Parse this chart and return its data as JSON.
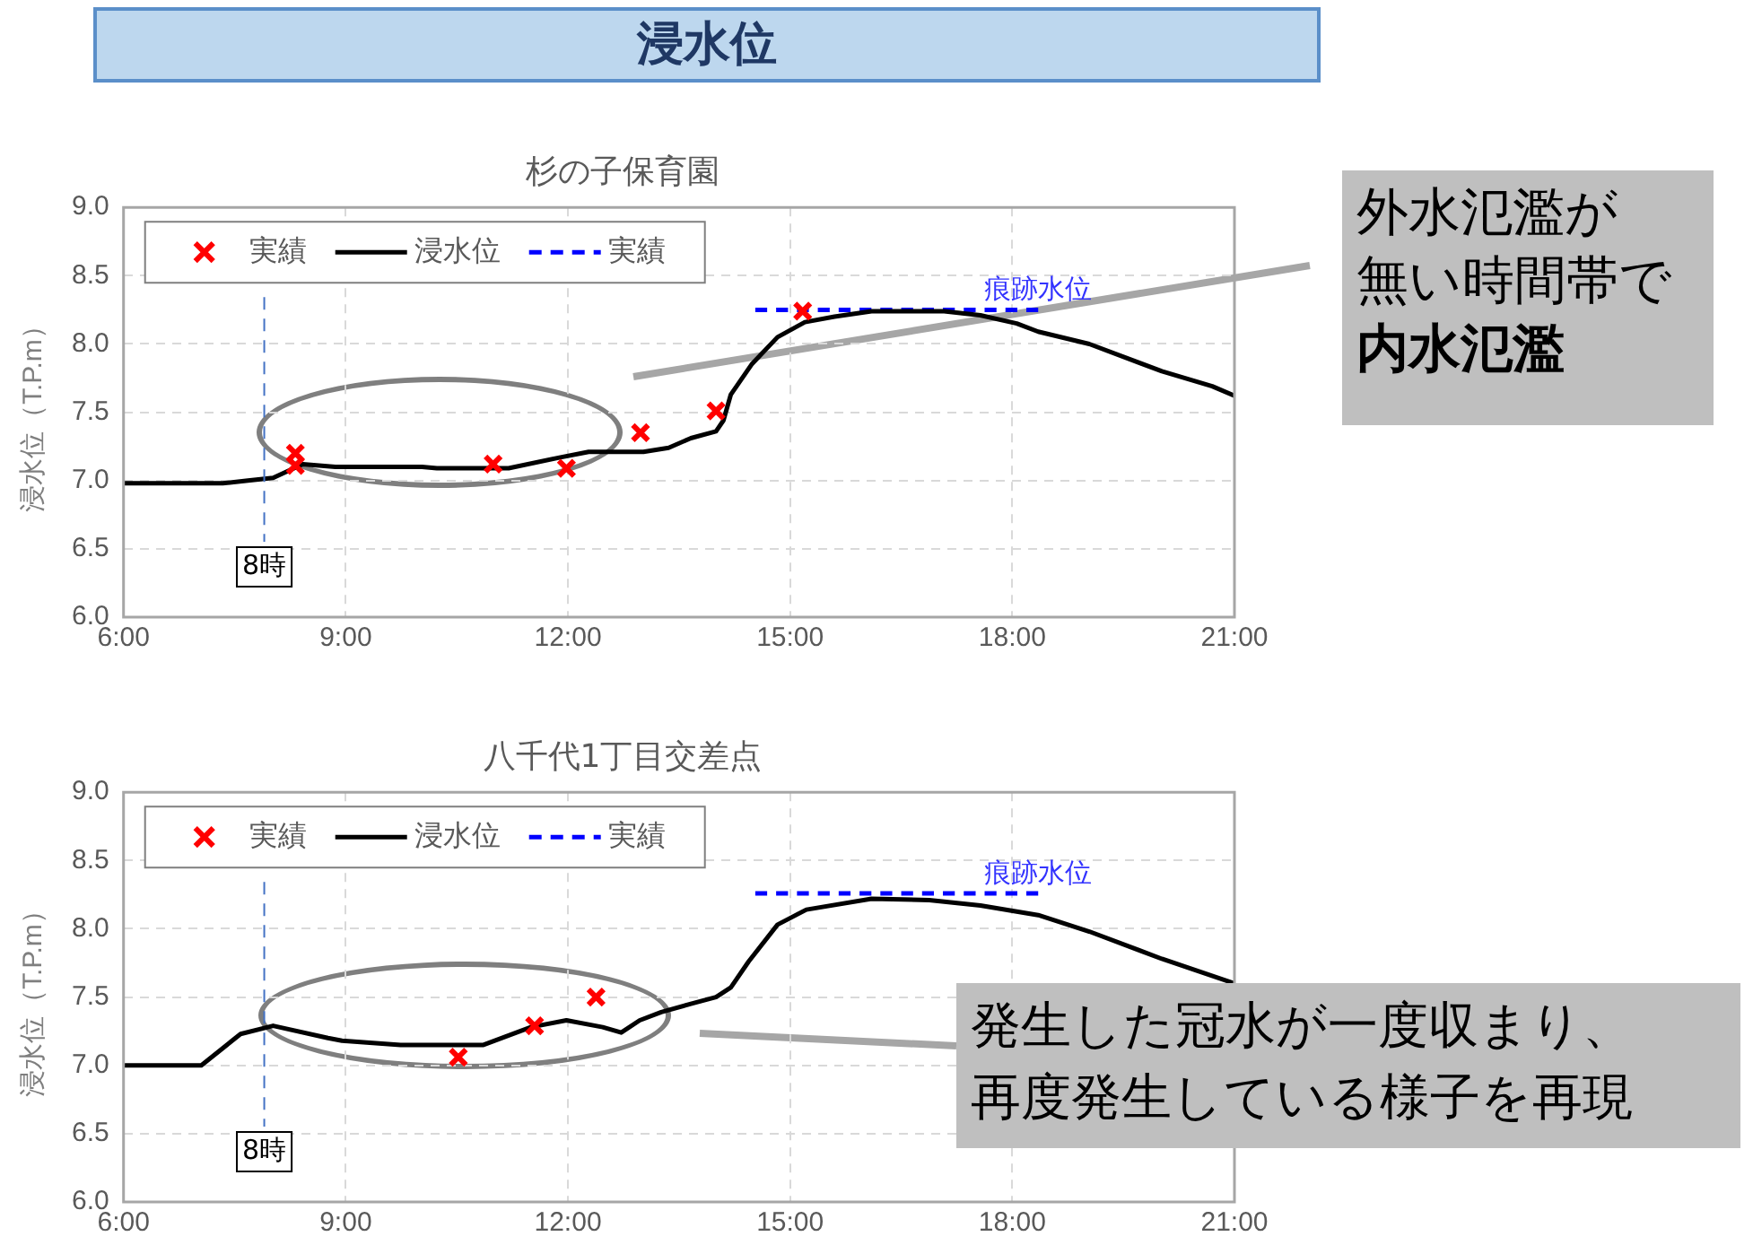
{
  "chart_data": [
    {
      "type": "line",
      "title": "杉の子保育園",
      "ylabel": "浸水位（T.P.m）",
      "xlim": [
        6,
        21
      ],
      "xticks": [
        {
          "value": 6,
          "label": "6:00"
        },
        {
          "value": 9,
          "label": "9:00"
        },
        {
          "value": 12,
          "label": "12:00"
        },
        {
          "value": 15,
          "label": "15:00"
        },
        {
          "value": 18,
          "label": "18:00"
        },
        {
          "value": 21,
          "label": "21:00"
        }
      ],
      "ylim": [
        6,
        9
      ],
      "yticks": [
        {
          "value": 6,
          "label": "6.0"
        },
        {
          "value": 6.5,
          "label": "6.5"
        },
        {
          "value": 7,
          "label": "7.0"
        },
        {
          "value": 7.5,
          "label": "7.5"
        },
        {
          "value": 8,
          "label": "8.0"
        },
        {
          "value": 8.5,
          "label": "8.5"
        },
        {
          "value": 9,
          "label": "9.0"
        }
      ],
      "grid": true,
      "legend": "top left",
      "series": [
        {
          "name": "実績",
          "type": "scatter",
          "marker": "cross",
          "color": "#ff0000",
          "x": [
            8.32,
            8.32,
            10.99,
            11.98,
            12.98,
            14.0,
            15.17
          ],
          "values": [
            7.2,
            7.11,
            7.12,
            7.09,
            7.35,
            7.51,
            8.24
          ]
        },
        {
          "name": "浸水位",
          "type": "line",
          "marker": "none",
          "line_style": "solid",
          "color": "#000000",
          "x": [
            6.0,
            7.34,
            7.68,
            8.02,
            8.42,
            8.86,
            10.03,
            10.23,
            11.2,
            11.9,
            12.28,
            13.02,
            13.36,
            13.66,
            14.0,
            14.1,
            14.2,
            14.48,
            14.83,
            15.2,
            15.6,
            16.1,
            17.08,
            17.57,
            18.06,
            18.35,
            19.04,
            20.02,
            20.7,
            21.0
          ],
          "values": [
            6.98,
            6.98,
            7.0,
            7.02,
            7.12,
            7.1,
            7.1,
            7.09,
            7.09,
            7.17,
            7.21,
            7.21,
            7.24,
            7.31,
            7.36,
            7.44,
            7.63,
            7.85,
            8.05,
            8.16,
            8.2,
            8.24,
            8.24,
            8.21,
            8.15,
            8.09,
            8.0,
            7.8,
            7.69,
            7.62
          ]
        },
        {
          "name": "実績",
          "type": "line",
          "marker": "none",
          "line_style": "dashed",
          "color": "#0000ff",
          "x": [
            14.53,
            18.35
          ],
          "values": [
            8.25,
            8.25
          ]
        }
      ],
      "ref_lines": [
        {
          "axis": "x",
          "value": 7.9,
          "label": "8時",
          "color": "#4472c4",
          "line_style": "dashed"
        }
      ],
      "annotations": [
        "浸水位",
        "痕跡水位",
        "外水氾濫が",
        "無い時間帯で",
        "内水氾濫"
      ]
    },
    {
      "type": "line",
      "title": "八千代1丁目交差点",
      "ylabel": "浸水位（T.P.m）",
      "xlim": [
        6,
        21
      ],
      "xticks": [
        {
          "value": 6,
          "label": "6:00"
        },
        {
          "value": 9,
          "label": "9:00"
        },
        {
          "value": 12,
          "label": "12:00"
        },
        {
          "value": 15,
          "label": "15:00"
        },
        {
          "value": 18,
          "label": "18:00"
        },
        {
          "value": 21,
          "label": "21:00"
        }
      ],
      "ylim": [
        6,
        9
      ],
      "yticks": [
        {
          "value": 6,
          "label": "6.0"
        },
        {
          "value": 6.5,
          "label": "6.5"
        },
        {
          "value": 7,
          "label": "7.0"
        },
        {
          "value": 7.5,
          "label": "7.5"
        },
        {
          "value": 8,
          "label": "8.0"
        },
        {
          "value": 8.5,
          "label": "8.5"
        },
        {
          "value": 9,
          "label": "9.0"
        }
      ],
      "grid": true,
      "legend": "top left",
      "series": [
        {
          "name": "実績",
          "type": "scatter",
          "marker": "cross",
          "color": "#ff0000",
          "x": [
            10.52,
            11.55,
            12.38
          ],
          "values": [
            7.06,
            7.29,
            7.5
          ]
        },
        {
          "name": "浸水位",
          "type": "line",
          "marker": "none",
          "line_style": "solid",
          "color": "#000000",
          "x": [
            6.0,
            7.05,
            7.58,
            8.02,
            8.76,
            8.95,
            9.74,
            10.86,
            11.5,
            11.98,
            12.47,
            12.72,
            12.97,
            13.26,
            13.66,
            14.0,
            14.2,
            14.44,
            14.83,
            15.22,
            16.1,
            16.88,
            17.57,
            18.35,
            19.04,
            20.02,
            21.0
          ],
          "values": [
            7.0,
            7.0,
            7.23,
            7.29,
            7.2,
            7.18,
            7.15,
            7.15,
            7.28,
            7.33,
            7.28,
            7.24,
            7.33,
            7.39,
            7.45,
            7.5,
            7.57,
            7.76,
            8.03,
            8.14,
            8.22,
            8.21,
            8.17,
            8.1,
            7.98,
            7.78,
            7.6
          ]
        },
        {
          "name": "実績",
          "type": "line",
          "marker": "none",
          "line_style": "dashed",
          "color": "#0000ff",
          "x": [
            14.53,
            18.35
          ],
          "values": [
            8.26,
            8.26
          ]
        }
      ],
      "ref_lines": [
        {
          "axis": "x",
          "value": 7.9,
          "label": "8時",
          "color": "#4472c4",
          "line_style": "dashed"
        }
      ],
      "annotations": [
        "痕跡水位",
        "発生した冠水が一度収まり、",
        "再度発生している様子を再現"
      ]
    }
  ]
}
